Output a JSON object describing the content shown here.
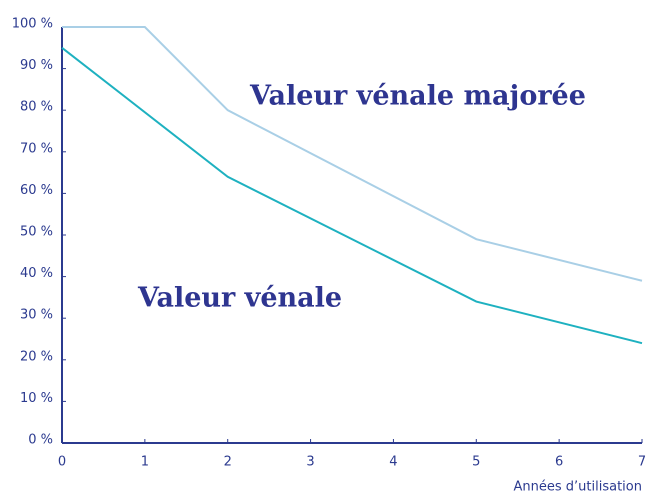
{
  "chart_data": {
    "type": "line",
    "x_label": "Années d’utilisation",
    "annotations": [
      "Valeur vénale majorée",
      "Valeur vénale"
    ],
    "series": [
      {
        "name": "Valeur vénale majorée",
        "color": "#a9cfe6",
        "x": [
          0,
          1,
          2,
          5,
          7
        ],
        "values": [
          100,
          100,
          80,
          49,
          39
        ]
      },
      {
        "name": "Valeur vénale",
        "color": "#1eb1c0",
        "x": [
          0,
          2,
          5,
          7
        ],
        "values": [
          95,
          64,
          34,
          24
        ]
      }
    ],
    "xlim": [
      0,
      7
    ],
    "xticks": [
      0,
      1,
      2,
      3,
      4,
      5,
      6,
      7
    ],
    "ylim": [
      0,
      100
    ],
    "yticks": [
      {
        "value": 0,
        "label": "0 %"
      },
      {
        "value": 10,
        "label": "10 %"
      },
      {
        "value": 20,
        "label": "20 %"
      },
      {
        "value": 30,
        "label": "30 %"
      },
      {
        "value": 40,
        "label": "40 %"
      },
      {
        "value": 50,
        "label": "50 %"
      },
      {
        "value": 60,
        "label": "60 %"
      },
      {
        "value": 70,
        "label": "70 %"
      },
      {
        "value": 80,
        "label": "80 %"
      },
      {
        "value": 90,
        "label": "90 %"
      },
      {
        "value": 100,
        "label": "100 %"
      }
    ],
    "axis_color": "#2b3a8f",
    "grid": false
  }
}
